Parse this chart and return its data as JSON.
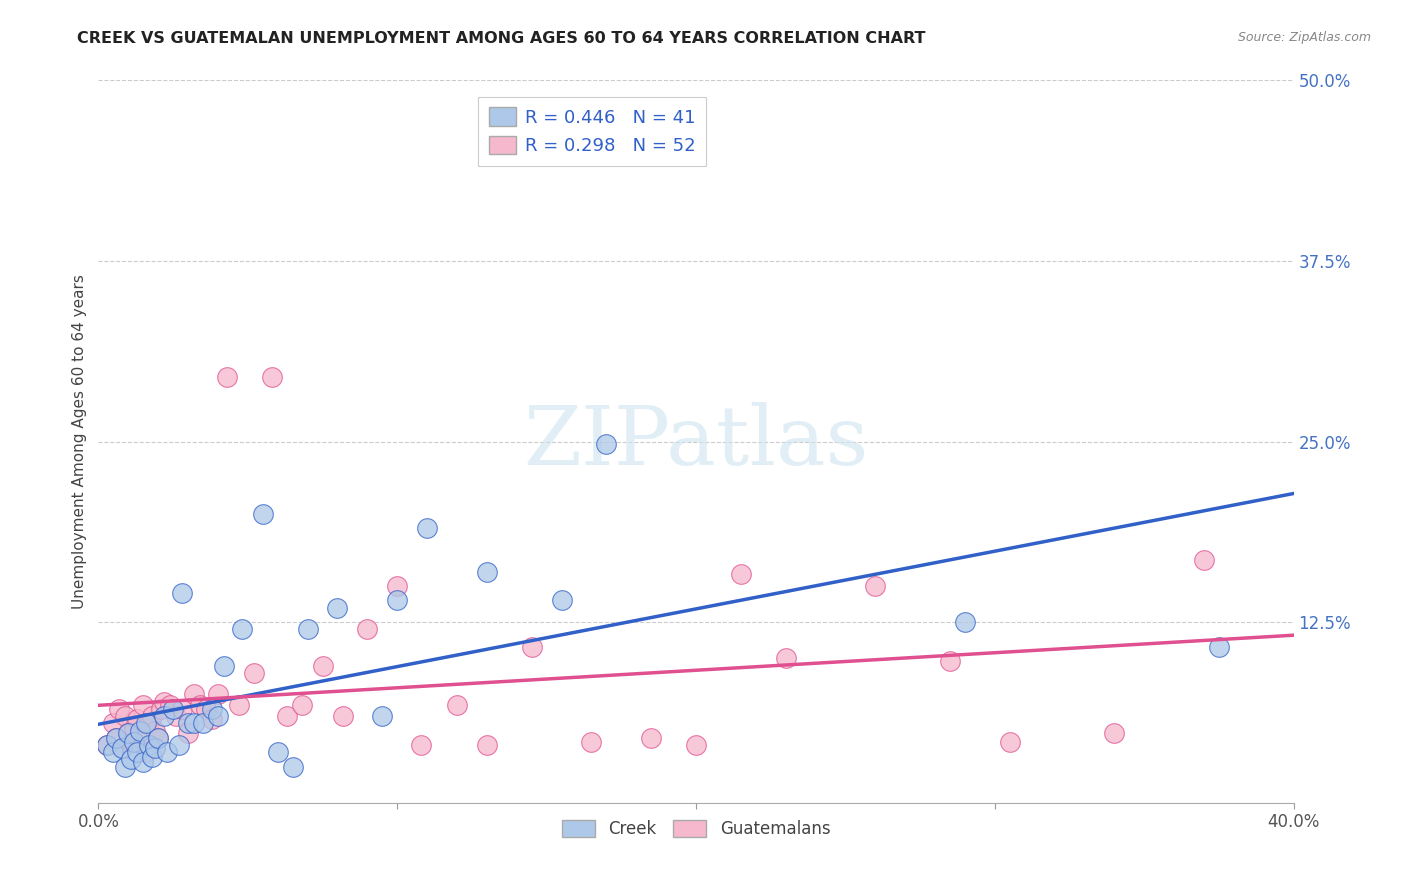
{
  "title": "CREEK VS GUATEMALAN UNEMPLOYMENT AMONG AGES 60 TO 64 YEARS CORRELATION CHART",
  "source": "Source: ZipAtlas.com",
  "ylabel": "Unemployment Among Ages 60 to 64 years",
  "xlim": [
    0.0,
    0.4
  ],
  "ylim": [
    0.0,
    0.5
  ],
  "xticks": [
    0.0,
    0.1,
    0.2,
    0.3,
    0.4
  ],
  "xticklabels": [
    "0.0%",
    "",
    "",
    "",
    "40.0%"
  ],
  "yticks": [
    0.0,
    0.125,
    0.25,
    0.375,
    0.5
  ],
  "yticklabels": [
    "",
    "12.5%",
    "25.0%",
    "37.5%",
    "50.0%"
  ],
  "creek_color": "#adc8e8",
  "guatemalan_color": "#f5b8cc",
  "creek_line_color": "#3060c8",
  "guatemalan_line_color": "#e05090",
  "creek_R": 0.446,
  "creek_N": 41,
  "guatemalan_R": 0.298,
  "guatemalan_N": 52,
  "background_color": "#ffffff",
  "grid_color": "#cccccc",
  "tick_color": "#4472c4",
  "creek_x": [
    0.003,
    0.005,
    0.006,
    0.008,
    0.009,
    0.01,
    0.011,
    0.012,
    0.013,
    0.014,
    0.015,
    0.016,
    0.017,
    0.018,
    0.019,
    0.02,
    0.022,
    0.023,
    0.025,
    0.027,
    0.028,
    0.03,
    0.032,
    0.035,
    0.038,
    0.04,
    0.042,
    0.048,
    0.055,
    0.06,
    0.065,
    0.07,
    0.08,
    0.095,
    0.1,
    0.11,
    0.13,
    0.155,
    0.17,
    0.29,
    0.375
  ],
  "creek_y": [
    0.04,
    0.035,
    0.045,
    0.038,
    0.025,
    0.048,
    0.03,
    0.042,
    0.035,
    0.05,
    0.028,
    0.055,
    0.04,
    0.032,
    0.038,
    0.045,
    0.06,
    0.035,
    0.065,
    0.04,
    0.145,
    0.055,
    0.055,
    0.055,
    0.065,
    0.06,
    0.095,
    0.12,
    0.2,
    0.035,
    0.025,
    0.12,
    0.135,
    0.06,
    0.14,
    0.19,
    0.16,
    0.14,
    0.248,
    0.125,
    0.108
  ],
  "guatemalan_x": [
    0.003,
    0.005,
    0.006,
    0.007,
    0.008,
    0.009,
    0.01,
    0.011,
    0.012,
    0.013,
    0.014,
    0.015,
    0.016,
    0.017,
    0.018,
    0.019,
    0.02,
    0.021,
    0.022,
    0.024,
    0.026,
    0.028,
    0.03,
    0.032,
    0.034,
    0.036,
    0.038,
    0.04,
    0.043,
    0.047,
    0.052,
    0.058,
    0.063,
    0.068,
    0.075,
    0.082,
    0.09,
    0.1,
    0.108,
    0.12,
    0.13,
    0.145,
    0.165,
    0.185,
    0.2,
    0.215,
    0.23,
    0.26,
    0.285,
    0.305,
    0.34,
    0.37
  ],
  "guatemalan_y": [
    0.04,
    0.055,
    0.045,
    0.065,
    0.038,
    0.06,
    0.048,
    0.042,
    0.052,
    0.058,
    0.045,
    0.068,
    0.035,
    0.055,
    0.06,
    0.05,
    0.045,
    0.065,
    0.07,
    0.068,
    0.06,
    0.065,
    0.048,
    0.075,
    0.068,
    0.065,
    0.058,
    0.075,
    0.295,
    0.068,
    0.09,
    0.295,
    0.06,
    0.068,
    0.095,
    0.06,
    0.12,
    0.15,
    0.04,
    0.068,
    0.04,
    0.108,
    0.042,
    0.045,
    0.04,
    0.158,
    0.1,
    0.15,
    0.098,
    0.042,
    0.048,
    0.168
  ]
}
